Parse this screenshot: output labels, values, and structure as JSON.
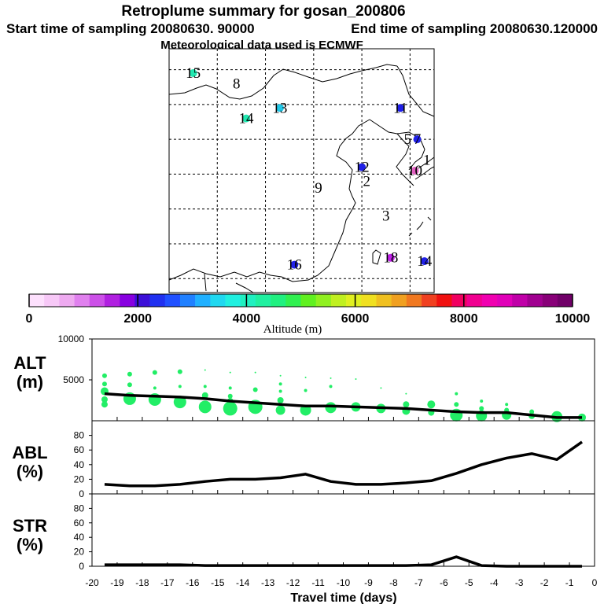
{
  "header": {
    "title": "Retroplume summary for gosan_200806",
    "start_time": "Start time of sampling 20080630. 90000",
    "end_time": "End time of sampling 20080630.120000",
    "met_data": "Meteorological data used is ECMWF"
  },
  "map": {
    "labels": [
      {
        "text": "15",
        "color": "#20e8b0",
        "lon": 85,
        "lat": 49.5,
        "dot": true
      },
      {
        "text": "8",
        "color": "#000000",
        "lon": 94,
        "lat": 48,
        "dot": false
      },
      {
        "text": "13",
        "color": "#20c8e8",
        "lon": 103,
        "lat": 44.5,
        "dot": true
      },
      {
        "text": "14",
        "color": "#20e8b0",
        "lon": 96,
        "lat": 43,
        "dot": true
      },
      {
        "text": "11",
        "color": "#2020e8",
        "lon": 128,
        "lat": 44.5,
        "dot": true
      },
      {
        "text": "5",
        "color": "#000000",
        "lon": 129.5,
        "lat": 40,
        "dot": false
      },
      {
        "text": "7",
        "color": "#2020e8",
        "lon": 131.5,
        "lat": 40,
        "dot": true
      },
      {
        "text": "1",
        "color": "#000000",
        "lon": 133.5,
        "lat": 37,
        "dot": false
      },
      {
        "text": "12",
        "color": "#2020e8",
        "lon": 120,
        "lat": 36,
        "dot": true
      },
      {
        "text": "10",
        "color": "#e060c0",
        "lon": 131,
        "lat": 35.5,
        "dot": true
      },
      {
        "text": "2",
        "color": "#000000",
        "lon": 121,
        "lat": 34,
        "dot": false
      },
      {
        "text": "9",
        "color": "#000000",
        "lon": 111,
        "lat": 33,
        "dot": false
      },
      {
        "text": "3",
        "color": "#000000",
        "lon": 125,
        "lat": 29,
        "dot": false
      },
      {
        "text": "18",
        "color": "#c020e8",
        "lon": 126,
        "lat": 23,
        "dot": true
      },
      {
        "text": "14",
        "color": "#2020e8",
        "lon": 133,
        "lat": 22.5,
        "dot": true
      },
      {
        "text": "16",
        "color": "#2020e8",
        "lon": 106,
        "lat": 22,
        "dot": true
      }
    ]
  },
  "colorbar": {
    "label": "Altitude (m)",
    "ticks": [
      "0",
      "2000",
      "4000",
      "6000",
      "8000",
      "10000"
    ],
    "colors": [
      "#fde0fd",
      "#f7c8f7",
      "#eeaaf0",
      "#e080ee",
      "#cc50e8",
      "#b020e0",
      "#8800e0",
      "#3c10d8",
      "#2030f0",
      "#2050ff",
      "#2080ff",
      "#20b0ff",
      "#20d8f0",
      "#20f0e0",
      "#20f0c0",
      "#20f0a0",
      "#20f080",
      "#30f050",
      "#60f020",
      "#90f020",
      "#c0f020",
      "#e0f020",
      "#f0e020",
      "#f0c020",
      "#f0a020",
      "#f07820",
      "#f04020",
      "#f01010",
      "#f00060",
      "#f00090",
      "#f000b0",
      "#e000b8",
      "#c000a8",
      "#a00090",
      "#880078",
      "#700068"
    ]
  },
  "chart_data": [
    {
      "type": "line",
      "title": "ALT (m)",
      "panel_label": [
        "ALT",
        "(m)"
      ],
      "x": [
        -19.5,
        -18.5,
        -17.5,
        -16.5,
        -15.5,
        -14.5,
        -13.5,
        -12.5,
        -11.5,
        -10.5,
        -9.5,
        -8.5,
        -7.5,
        -6.5,
        -5.5,
        -4.5,
        -3.5,
        -2.5,
        -1.5,
        -0.5
      ],
      "values": [
        3300,
        3100,
        3000,
        2900,
        2700,
        2400,
        2200,
        2000,
        1800,
        1800,
        1700,
        1600,
        1500,
        1300,
        1100,
        1000,
        1000,
        700,
        400,
        400
      ],
      "ylim": [
        0,
        10000
      ],
      "yticks": [
        "10000",
        "5000"
      ],
      "ytick_values": [
        10000,
        5000
      ],
      "scatter": [
        {
          "x": -19.5,
          "y": 5500,
          "s": 3
        },
        {
          "x": -19.5,
          "y": 4500,
          "s": 3
        },
        {
          "x": -19.5,
          "y": 3600,
          "s": 5
        },
        {
          "x": -19.5,
          "y": 2600,
          "s": 4
        },
        {
          "x": -19.5,
          "y": 2000,
          "s": 4
        },
        {
          "x": -18.5,
          "y": 5700,
          "s": 3
        },
        {
          "x": -18.5,
          "y": 4400,
          "s": 3
        },
        {
          "x": -18.5,
          "y": 2700,
          "s": 8
        },
        {
          "x": -17.5,
          "y": 5900,
          "s": 3
        },
        {
          "x": -17.5,
          "y": 4000,
          "s": 2
        },
        {
          "x": -17.5,
          "y": 2600,
          "s": 8
        },
        {
          "x": -16.5,
          "y": 6000,
          "s": 3
        },
        {
          "x": -16.5,
          "y": 4200,
          "s": 2
        },
        {
          "x": -16.5,
          "y": 2300,
          "s": 8
        },
        {
          "x": -15.5,
          "y": 6200,
          "s": 1
        },
        {
          "x": -15.5,
          "y": 4200,
          "s": 2
        },
        {
          "x": -15.5,
          "y": 3100,
          "s": 4
        },
        {
          "x": -15.5,
          "y": 1700,
          "s": 8
        },
        {
          "x": -14.5,
          "y": 5900,
          "s": 1
        },
        {
          "x": -14.5,
          "y": 4000,
          "s": 2
        },
        {
          "x": -14.5,
          "y": 3000,
          "s": 3
        },
        {
          "x": -14.5,
          "y": 2400,
          "s": 4
        },
        {
          "x": -14.5,
          "y": 1500,
          "s": 9
        },
        {
          "x": -13.5,
          "y": 5900,
          "s": 1
        },
        {
          "x": -13.5,
          "y": 3800,
          "s": 3
        },
        {
          "x": -13.5,
          "y": 1700,
          "s": 9
        },
        {
          "x": -12.5,
          "y": 5500,
          "s": 1
        },
        {
          "x": -12.5,
          "y": 4500,
          "s": 2
        },
        {
          "x": -12.5,
          "y": 3600,
          "s": 2
        },
        {
          "x": -12.5,
          "y": 2500,
          "s": 4
        },
        {
          "x": -12.5,
          "y": 1300,
          "s": 6
        },
        {
          "x": -11.5,
          "y": 5300,
          "s": 1
        },
        {
          "x": -11.5,
          "y": 3700,
          "s": 2
        },
        {
          "x": -11.5,
          "y": 1300,
          "s": 7
        },
        {
          "x": -10.5,
          "y": 5200,
          "s": 1
        },
        {
          "x": -10.5,
          "y": 4200,
          "s": 2
        },
        {
          "x": -10.5,
          "y": 1600,
          "s": 7
        },
        {
          "x": -9.5,
          "y": 5100,
          "s": 1
        },
        {
          "x": -9.5,
          "y": 1700,
          "s": 6
        },
        {
          "x": -8.5,
          "y": 4000,
          "s": 1
        },
        {
          "x": -8.5,
          "y": 1500,
          "s": 6
        },
        {
          "x": -7.5,
          "y": 3300,
          "s": 1
        },
        {
          "x": -7.5,
          "y": 2000,
          "s": 4
        },
        {
          "x": -7.5,
          "y": 1200,
          "s": 5
        },
        {
          "x": -6.5,
          "y": 2000,
          "s": 5
        },
        {
          "x": -6.5,
          "y": 1000,
          "s": 4
        },
        {
          "x": -5.5,
          "y": 3300,
          "s": 2
        },
        {
          "x": -5.5,
          "y": 2000,
          "s": 3
        },
        {
          "x": -5.5,
          "y": 700,
          "s": 8
        },
        {
          "x": -4.5,
          "y": 2400,
          "s": 2
        },
        {
          "x": -4.5,
          "y": 1500,
          "s": 3
        },
        {
          "x": -4.5,
          "y": 600,
          "s": 7
        },
        {
          "x": -3.5,
          "y": 2000,
          "s": 2
        },
        {
          "x": -3.5,
          "y": 1300,
          "s": 3
        },
        {
          "x": -3.5,
          "y": 700,
          "s": 6
        },
        {
          "x": -2.5,
          "y": 1100,
          "s": 3
        },
        {
          "x": -2.5,
          "y": 600,
          "s": 4
        },
        {
          "x": -1.5,
          "y": 500,
          "s": 7
        },
        {
          "x": -0.5,
          "y": 400,
          "s": 5
        }
      ]
    },
    {
      "type": "line",
      "title": "ABL (%)",
      "panel_label": [
        "ABL",
        "(%)"
      ],
      "x": [
        -19.5,
        -18.5,
        -17.5,
        -16.5,
        -15.5,
        -14.5,
        -13.5,
        -12.5,
        -11.5,
        -10.5,
        -9.5,
        -8.5,
        -7.5,
        -6.5,
        -5.5,
        -4.5,
        -3.5,
        -2.5,
        -1.5,
        -0.5
      ],
      "values": [
        13,
        11,
        11,
        13,
        17,
        20,
        20,
        22,
        27,
        17,
        13,
        13,
        15,
        18,
        28,
        40,
        49,
        55,
        47,
        71
      ],
      "ylim": [
        0,
        100
      ],
      "yticks": [
        "80",
        "60",
        "40",
        "20",
        "0"
      ],
      "ytick_values": [
        80,
        60,
        40,
        20,
        0
      ]
    },
    {
      "type": "line",
      "title": "STR (%)",
      "panel_label": [
        "STR",
        "(%)"
      ],
      "x": [
        -19.5,
        -18.5,
        -17.5,
        -16.5,
        -15.5,
        -14.5,
        -13.5,
        -12.5,
        -11.5,
        -10.5,
        -9.5,
        -8.5,
        -7.5,
        -6.5,
        -5.5,
        -4.5,
        -3.5,
        -2.5,
        -1.5,
        -0.5
      ],
      "values": [
        2,
        2,
        2,
        2,
        1,
        1,
        1,
        1,
        1,
        1,
        1,
        1,
        1,
        2,
        13,
        1,
        0,
        0,
        0,
        0
      ],
      "ylim": [
        0,
        100
      ],
      "yticks": [
        "80",
        "60",
        "40",
        "20",
        "0"
      ],
      "ytick_values": [
        80,
        60,
        40,
        20,
        0
      ]
    }
  ],
  "x_axis": {
    "xlabel": "Travel time (days)",
    "xlim": [
      -20,
      0
    ],
    "tick_values": [
      -20,
      -19,
      -18,
      -17,
      -16,
      -15,
      -14,
      -13,
      -12,
      -11,
      -10,
      -9,
      -8,
      -7,
      -6,
      -5,
      -4,
      -3,
      -2,
      -1,
      0
    ],
    "tick_labels": [
      "-20",
      "-19",
      "-18",
      "-17",
      "-16",
      "-15",
      "-14",
      "-13",
      "-12",
      "-11",
      "-10",
      "-9",
      "-8",
      "-7",
      "-6",
      "-5",
      "-4",
      "-3",
      "-2",
      "-1",
      "0"
    ]
  },
  "style": {
    "scatter_color": "#22ee66",
    "line_color": "#000000"
  }
}
